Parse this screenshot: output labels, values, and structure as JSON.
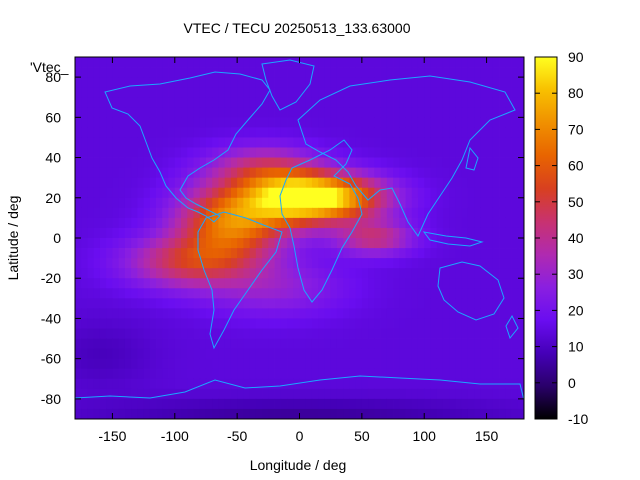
{
  "chart_data": {
    "type": "heatmap",
    "title": "VTEC / TECU 20250513_133.63000",
    "xlabel": "Longitude / deg",
    "ylabel": "Latitude / deg",
    "series_key": "'Vtec_",
    "xlim": [
      -180,
      180
    ],
    "ylim": [
      -90,
      90
    ],
    "xticks": [
      -150,
      -100,
      -50,
      0,
      50,
      100,
      150
    ],
    "yticks": [
      -80,
      -60,
      -40,
      -20,
      0,
      20,
      40,
      60,
      80
    ],
    "colorbar": {
      "range": [
        -10,
        90
      ],
      "ticks": [
        -10,
        0,
        10,
        20,
        30,
        40,
        50,
        60,
        70,
        80,
        90
      ],
      "colors": [
        "#000000",
        "#2a006a",
        "#4500b8",
        "#6a0df0",
        "#8a1fe0",
        "#b02ab0",
        "#c83270",
        "#d84020",
        "#e86400",
        "#f09000",
        "#f8c000",
        "#ffff20"
      ]
    },
    "background_vtec": 14,
    "features": [
      {
        "lon": 25,
        "lat": 20,
        "amp": 62,
        "slon": 32,
        "slat": 8
      },
      {
        "lon": -55,
        "lat": 8,
        "amp": 52,
        "slon": 30,
        "slat": 13
      },
      {
        "lon": -90,
        "lat": -12,
        "amp": 32,
        "slon": 35,
        "slat": 9
      },
      {
        "lon": -10,
        "lat": 20,
        "amp": 40,
        "slon": 28,
        "slat": 10
      },
      {
        "lon": 60,
        "lat": 0,
        "amp": 28,
        "slon": 22,
        "slat": 6
      },
      {
        "lon": -30,
        "lat": 35,
        "amp": 22,
        "slon": 30,
        "slat": 8
      },
      {
        "lon": -20,
        "lat": -25,
        "amp": 14,
        "slon": 40,
        "slat": 10
      },
      {
        "lon": 0,
        "lat": -88,
        "amp": -9,
        "slon": 120,
        "slat": 6
      },
      {
        "lon": -160,
        "lat": -58,
        "amp": -5,
        "slon": 30,
        "slat": 12
      }
    ]
  }
}
